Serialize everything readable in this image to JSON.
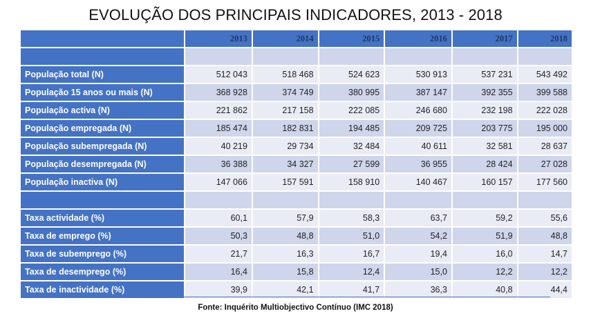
{
  "title": "EVOLUÇÃO DOS PRINCIPAIS INDICADORES, 2013 - 2018",
  "years": [
    "2013",
    "2014",
    "2015",
    "2016",
    "2017",
    "2018"
  ],
  "population_rows": [
    {
      "label": "População total (N)",
      "values": [
        "512 043",
        "518 468",
        "524 623",
        "530 913",
        "537 231",
        "543 492"
      ]
    },
    {
      "label": "População 15 anos ou mais (N)",
      "values": [
        "368 928",
        "374 749",
        "380 995",
        "387 147",
        "392 355",
        "399 588"
      ]
    },
    {
      "label": "População activa (N)",
      "values": [
        "221 862",
        "217 158",
        "222 085",
        "246 680",
        "232 198",
        "222 028"
      ]
    },
    {
      "label": "População empregada (N)",
      "values": [
        "185 474",
        "182 831",
        "194 485",
        "209 725",
        "203 775",
        "195 000"
      ]
    },
    {
      "label": "População subempregada (N)",
      "values": [
        "40 219",
        "29 734",
        "32 484",
        "40 611",
        "32 581",
        "28 637"
      ]
    },
    {
      "label": "População desempregada (N)",
      "values": [
        "36 388",
        "34 327",
        "27 599",
        "36 955",
        "28 424",
        "27 028"
      ]
    },
    {
      "label": "População inactiva (N)",
      "values": [
        "147 066",
        "157 591",
        "158 910",
        "140 467",
        "160 157",
        "177 560"
      ]
    }
  ],
  "rate_rows": [
    {
      "label": "Taxa actividade (%)",
      "values": [
        "60,1",
        "57,9",
        "58,3",
        "63,7",
        "59,2",
        "55,6"
      ]
    },
    {
      "label": "Taxa de emprego (%)",
      "values": [
        "50,3",
        "48,8",
        "51,0",
        "54,2",
        "51,9",
        "48,8"
      ]
    },
    {
      "label": "Taxa de subemprego (%)",
      "values": [
        "21,7",
        "16,3",
        "16,7",
        "19,4",
        "16,0",
        "14,7"
      ]
    },
    {
      "label": "Taxa de desemprego (%)",
      "values": [
        "16,4",
        "15,8",
        "12,4",
        "15,0",
        "12,2",
        "12,2"
      ]
    },
    {
      "label": "Taxa de inactividade (%)",
      "values": [
        "39,9",
        "42,1",
        "41,7",
        "36,3",
        "40,8",
        "44,4"
      ]
    }
  ],
  "source": "Fonte:  Inquérito Multiobjectivo Contínuo (IMC 2018)",
  "colors": {
    "header": "#4472c4",
    "row_light": "#e9ecf5",
    "row_dark": "#cfd5ea"
  }
}
